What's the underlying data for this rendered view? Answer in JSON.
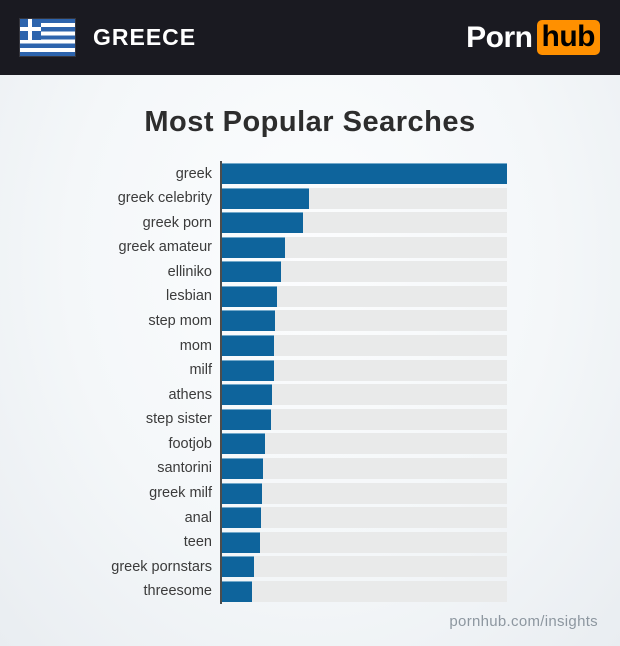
{
  "header": {
    "country": "GREECE",
    "logo_part1": "Porn",
    "logo_part2": "hub"
  },
  "title": "Most Popular Searches",
  "footer": {
    "site": "pornhub.com/insights"
  },
  "colors": {
    "header_bg": "#1a1a21",
    "bar_blue": "#0e649c",
    "track_gray": "#e9eaea",
    "axis_gray": "#4d4d4d",
    "logo_orange": "#ff9000",
    "flag_blue": "#2d64ad"
  },
  "chart_data": {
    "type": "bar",
    "orientation": "horizontal",
    "title": "Most Popular Searches",
    "categories": [
      "greek",
      "greek celebrity",
      "greek porn",
      "greek amateur",
      "elliniko",
      "lesbian",
      "step mom",
      "mom",
      "milf",
      "athens",
      "step sister",
      "footjob",
      "santorini",
      "greek milf",
      "anal",
      "teen",
      "greek pornstars",
      "threesome"
    ],
    "values": [
      100,
      30.5,
      28.4,
      22.1,
      20.7,
      19.3,
      18.6,
      18.2,
      18.2,
      17.5,
      17.2,
      15.1,
      14.4,
      14.0,
      13.7,
      13.3,
      11.2,
      10.5
    ],
    "value_unit": "relative popularity (% of top search)",
    "xlim": [
      0,
      100
    ],
    "grid": false,
    "legend": false,
    "bar_color": "#0e649c",
    "track_color": "#e9eaea"
  }
}
